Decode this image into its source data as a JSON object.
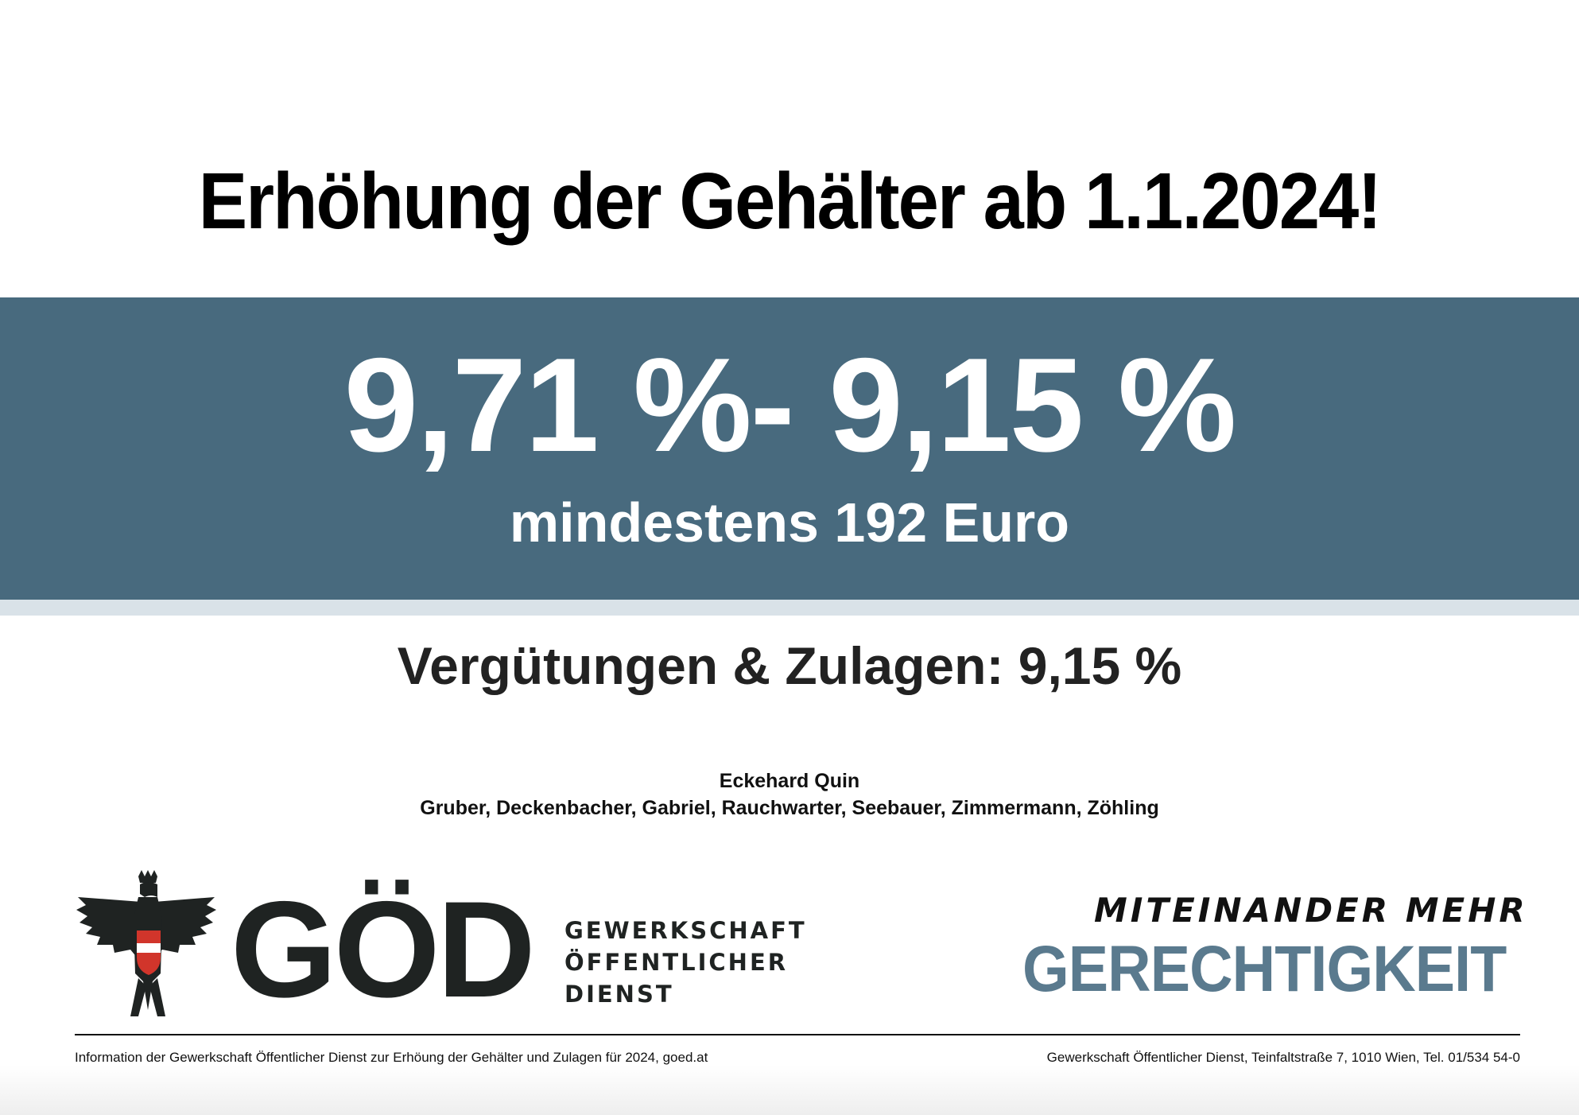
{
  "headline": "Erhöhung der Gehälter ab 1.1.2024!",
  "highlight": {
    "rate_range": "9,71 %- 9,15 %",
    "minimum": "mindestens 192 Euro"
  },
  "allowances": "Vergütungen & Zulagen: 9,15 %",
  "signatories": {
    "lead": "Eckehard Quin",
    "team": "Gruber, Deckenbacher, Gabriel, Rauchwarter, Seebauer, Zimmermann, Zöhling"
  },
  "logo": {
    "icon": "eagle-coat-of-arms-icon",
    "wordmark": "GÖD",
    "subtitle_lines": [
      "GEWERKSCHAFT",
      "ÖFFENTLICHER",
      "DIENST"
    ]
  },
  "slogan": {
    "top": "MITEINANDER MEHR",
    "bottom": "GERECHTIGKEIT"
  },
  "footer": {
    "left": "Information der Gewerkschaft Öffentlicher Dienst zur Erhöung der Gehälter und Zulagen für 2024, goed.at",
    "right": "Gewerkschaft Öffentlicher Dienst, Teinfaltstraße 7, 1010 Wien, Tel. 01/534 54-0"
  },
  "colors": {
    "band": "#486a7e",
    "band_strip": "#d9e2e8",
    "slogan_accent": "#5a7a8e",
    "flag_red": "#d1352b"
  }
}
